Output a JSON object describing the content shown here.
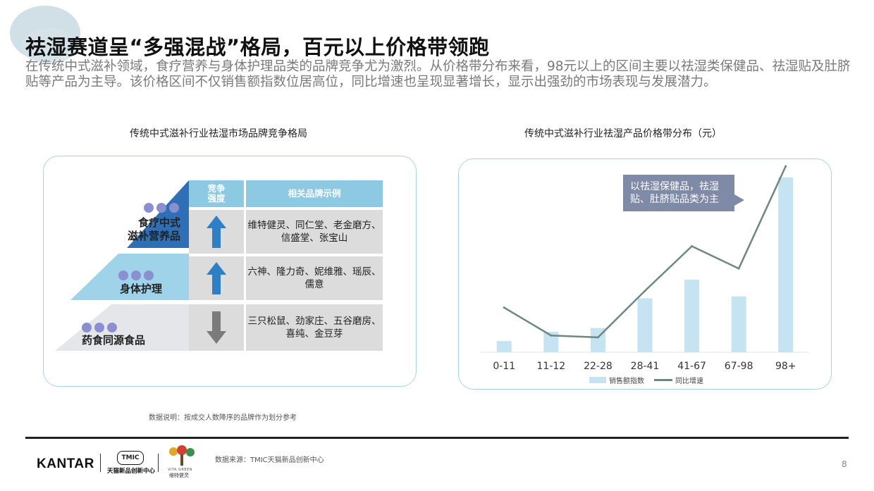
{
  "header": {
    "title": "祛湿赛道呈“多强混战”格局，百元以上价格带领跑",
    "subtitle": "在传统中式滋补领域，食疗营养与身体护理品类的品牌竞争尤为激烈。从价格带分布来看，98元以上的区间主要以祛湿类保健品、祛湿贴及肚脐贴等产品为主导。该价格区间不仅销售额指数位居高位，同比增速也呈现显著增长，显示出强劲的市场表现与发展潜力。"
  },
  "left_panel": {
    "title": "传统中式滋补行业祛湿市场品牌竞争格局",
    "col_headers": [
      "竞争\n强度",
      "相关品牌示例"
    ],
    "rows": [
      {
        "category": "食疗中式\n滋补营养品",
        "trend": "up",
        "brands": "维特健灵、同仁堂、老金磨方、\n信盛堂、张宝山"
      },
      {
        "category": "身体护理",
        "trend": "up",
        "brands": "六神、隆力奇、妮维雅、瑶辰、\n儒意"
      },
      {
        "category": "药食同源食品",
        "trend": "down",
        "brands": "三只松鼠、劲家庄、五谷磨房、\n喜纯、金豆芽"
      }
    ],
    "note": "数据说明：按成交人数降序的品牌作为划分参考"
  },
  "chart_data": {
    "type": "bar",
    "title": "传统中式滋补行业祛湿产品价格带分布（元）",
    "categories": [
      "0-11",
      "11-12",
      "22-28",
      "28-41",
      "41-67",
      "67-98",
      "98+"
    ],
    "series": [
      {
        "name": "销售额指数",
        "type": "bar",
        "values": [
          6,
          11,
          13,
          29,
          39,
          30,
          94
        ]
      },
      {
        "name": "同比增速",
        "type": "line",
        "values": [
          24,
          9,
          8,
          33,
          57,
          45,
          100
        ]
      }
    ],
    "annotation": "以祛湿保健品，祛湿贴、肚脐贴品类为主",
    "colors": {
      "bar": "#c5e3f1",
      "line": "#6e8780"
    }
  },
  "colors": {
    "pyramid_top": "#2e6fb6",
    "pyramid_mid": "#9fd3ea",
    "pyramid_bottom": "#e4e6ea",
    "header_cell": "#8ec9e3",
    "row_cell": "#dcdcdc",
    "arrow_up": "#2e7fc6",
    "arrow_down": "#7b7b7b"
  },
  "footer": {
    "brand": "KANTAR",
    "tmic_logo": "TMIC",
    "tmic_cn": "天猫新品创新中心",
    "vita_en": "VITA GREEN",
    "vita_cn": "维特健灵",
    "source": "数据来源：TMIC天猫新品创新中心",
    "page": "8"
  }
}
